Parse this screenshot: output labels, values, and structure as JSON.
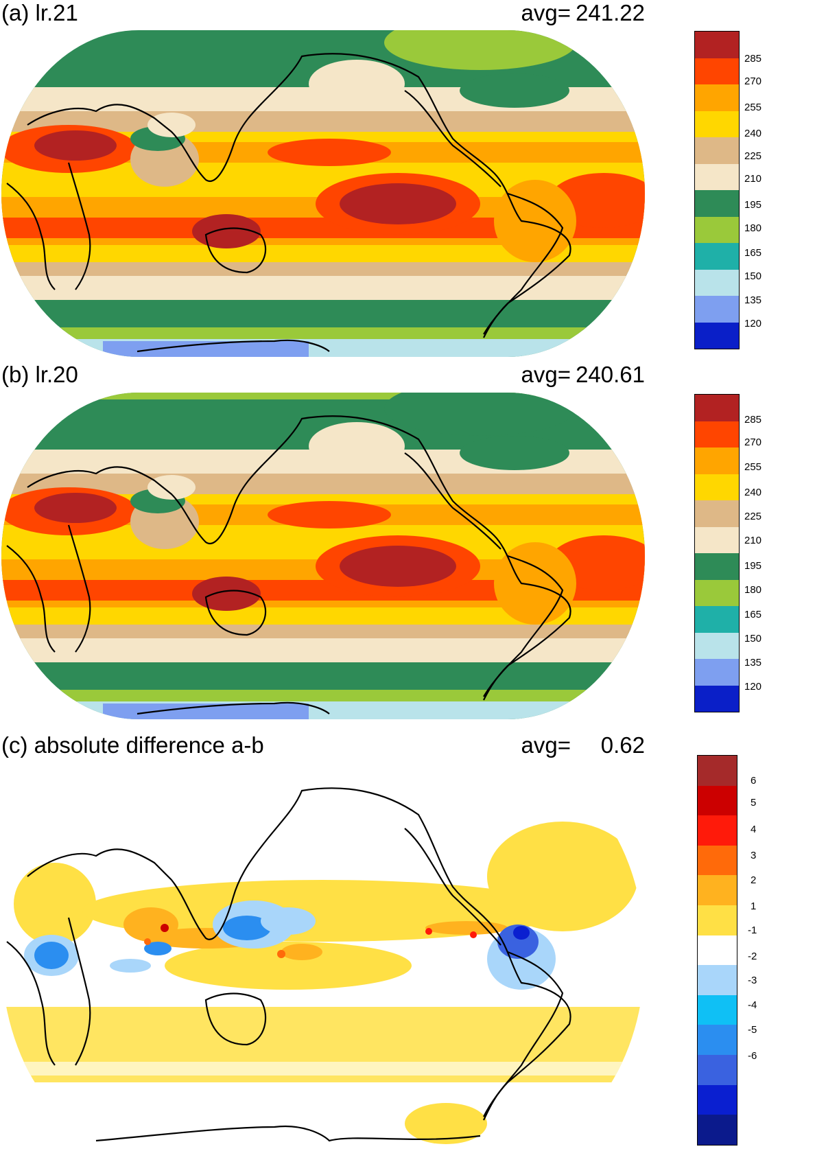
{
  "panels": [
    {
      "title": "(a) lr.21",
      "avg_label": "avg=",
      "avg_value": "241.22",
      "colorbar": {
        "labels": [
          "285",
          "270",
          "255",
          "240",
          "225",
          "210",
          "195",
          "180",
          "165",
          "150",
          "135",
          "120"
        ],
        "colors": [
          "#2b0a8f",
          "#0a1fc8",
          "#3f66e3",
          "#7e9ff0",
          "#b9e3ea",
          "#1fb0a8",
          "#9ac93a",
          "#2e8b57",
          "#f5e6c8",
          "#deb887",
          "#ffd700",
          "#ffa500",
          "#ff4500",
          "#b22222"
        ]
      }
    },
    {
      "title": "(b) lr.20",
      "avg_label": "avg=",
      "avg_value": "240.61",
      "colorbar": {
        "labels": [
          "285",
          "270",
          "255",
          "240",
          "225",
          "210",
          "195",
          "180",
          "165",
          "150",
          "135",
          "120"
        ],
        "colors": [
          "#2b0a8f",
          "#0a1fc8",
          "#3f66e3",
          "#7e9ff0",
          "#b9e3ea",
          "#1fb0a8",
          "#9ac93a",
          "#2e8b57",
          "#f5e6c8",
          "#deb887",
          "#ffd700",
          "#ffa500",
          "#ff4500",
          "#b22222"
        ]
      }
    },
    {
      "title": "(c) absolute difference a-b",
      "avg_label": "avg=",
      "avg_value": "0.62",
      "colorbar": {
        "labels": [
          "6",
          "5",
          "4",
          "3",
          "2",
          "1",
          "-1",
          "-2",
          "-3",
          "-4",
          "-5",
          "-6"
        ],
        "colors": [
          "#0b1a8c",
          "#0a1fd0",
          "#3a62e0",
          "#2b8ef0",
          "#0fc0f5",
          "#a9d6fa",
          "#ffffff",
          "#ffe045",
          "#ffb21f",
          "#ff6a0a",
          "#ff1a0a",
          "#cc0000",
          "#a52a2a"
        ]
      }
    }
  ]
}
